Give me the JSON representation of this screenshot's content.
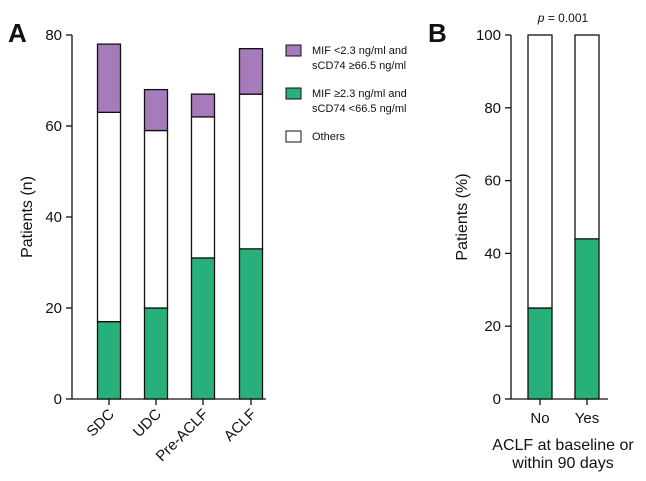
{
  "figure": {
    "panel_a_letter": "A",
    "panel_b_letter": "B",
    "colors": {
      "mif_high_group": "#a57bbb",
      "mif_low_group": "#27b07a",
      "others": "#ffffff",
      "stroke": "#111111"
    }
  },
  "chart_data": [
    {
      "type": "bar",
      "stacked": true,
      "panel": "A",
      "categories": [
        "SDC",
        "UDC",
        "Pre-ACLF",
        "ACLF"
      ],
      "series": [
        {
          "name": "MIF ≥2.3 ng/ml and sCD74 <66.5 ng/ml",
          "legend_lines": [
            "MIF ≥2.3 ng/ml and",
            "sCD74 <66.5 ng/ml"
          ],
          "color": "#27b07a",
          "values": [
            17,
            20,
            31,
            33
          ]
        },
        {
          "name": "Others",
          "legend_lines": [
            "Others"
          ],
          "color": "#ffffff",
          "values": [
            46,
            39,
            31,
            34
          ]
        },
        {
          "name": "MIF <2.3 ng/ml and sCD74 ≥66.5 ng/ml",
          "legend_lines": [
            "MIF <2.3 ng/ml and",
            "sCD74 ≥66.5 ng/ml"
          ],
          "color": "#a57bbb",
          "values": [
            15,
            9,
            5,
            10
          ]
        }
      ],
      "legend_order": [
        2,
        0,
        1
      ],
      "xlabel": "",
      "ylabel": "Patients (n)",
      "ylim": [
        0,
        80
      ],
      "yticks": [
        0,
        20,
        40,
        60,
        80
      ],
      "grid": false,
      "legend_position": "top-right"
    },
    {
      "type": "bar",
      "stacked": true,
      "panel": "B",
      "categories": [
        "No",
        "Yes"
      ],
      "series": [
        {
          "name": "MIF ≥2.3 ng/ml and sCD74 <66.5 ng/ml",
          "color": "#27b07a",
          "values": [
            25,
            44
          ],
          "data_labels": [
            "25%",
            "44%"
          ]
        },
        {
          "name": "Others",
          "color": "#ffffff",
          "values": [
            75,
            56
          ]
        }
      ],
      "xlabel_lines": [
        "ACLF at baseline or",
        "within 90 days"
      ],
      "ylabel": "Patients (%)",
      "ylim": [
        0,
        100
      ],
      "yticks": [
        0,
        20,
        40,
        60,
        80,
        100
      ],
      "annotation": {
        "p_symbol": "p",
        "p_rest": " = 0.001"
      },
      "grid": false
    }
  ]
}
